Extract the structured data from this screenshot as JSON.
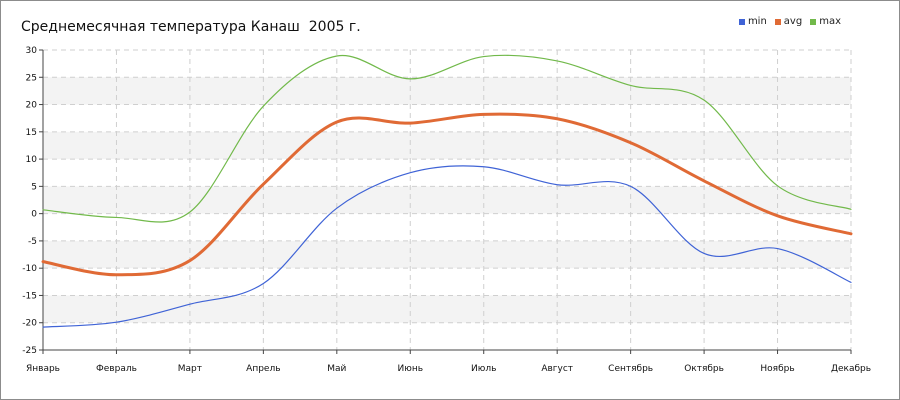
{
  "chart_data": {
    "type": "line",
    "title": "Среднемесячная температура Канаш  2005 г.",
    "categories": [
      "Январь",
      "Февраль",
      "Март",
      "Апрель",
      "Май",
      "Июнь",
      "Июль",
      "Август",
      "Сентябрь",
      "Октябрь",
      "Ноябрь",
      "Декабрь"
    ],
    "series": [
      {
        "name": "min",
        "color": "#3f63d6",
        "values": [
          -20.8,
          -19.9,
          -16.6,
          -12.8,
          1.0,
          7.5,
          8.6,
          5.3,
          5.0,
          -7.3,
          -6.4,
          -12.6
        ]
      },
      {
        "name": "avg",
        "color": "#e06a35",
        "values": [
          -8.8,
          -11.2,
          -8.6,
          5.4,
          16.8,
          16.6,
          18.2,
          17.4,
          13.0,
          6.0,
          -0.4,
          -3.7
        ]
      },
      {
        "name": "max",
        "color": "#71b94a",
        "values": [
          0.7,
          -0.7,
          0.3,
          19.7,
          28.9,
          24.7,
          28.8,
          28.0,
          23.5,
          20.8,
          5.1,
          0.8
        ]
      }
    ],
    "ylim": [
      -25,
      30
    ],
    "yticks": [
      30,
      25,
      20,
      15,
      10,
      5,
      0,
      -5,
      -10,
      -15,
      -20,
      -25
    ],
    "grid": true,
    "legend_position": "top-right"
  }
}
